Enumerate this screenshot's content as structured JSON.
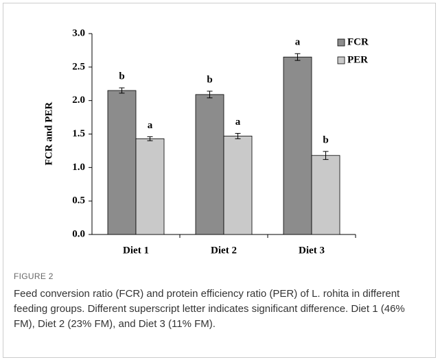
{
  "chart_data": {
    "type": "bar",
    "ylabel": "FCR and PER",
    "categories": [
      "Diet 1",
      "Diet 2",
      "Diet 3"
    ],
    "series": [
      {
        "name": "FCR",
        "color": "#8c8c8c",
        "values": [
          2.15,
          2.09,
          2.65
        ],
        "errors": [
          0.04,
          0.05,
          0.05
        ],
        "letters": [
          "b",
          "b",
          "a"
        ]
      },
      {
        "name": "PER",
        "color": "#c9c9c9",
        "values": [
          1.43,
          1.47,
          1.18
        ],
        "errors": [
          0.03,
          0.04,
          0.06
        ],
        "letters": [
          "a",
          "a",
          "b"
        ]
      }
    ],
    "ylim": [
      0,
      3
    ],
    "yticks": [
      {
        "value": 0,
        "label": "0.0"
      },
      {
        "value": 0.5,
        "label": "0.5"
      },
      {
        "value": 1,
        "label": "1.0"
      },
      {
        "value": 1.5,
        "label": "1.5"
      },
      {
        "value": 2,
        "label": "2.0"
      },
      {
        "value": 2.5,
        "label": "2.5"
      },
      {
        "value": 3,
        "label": "3.0"
      }
    ],
    "grid": false,
    "legend": "upper right"
  },
  "figure": {
    "label": "FIGURE 2",
    "caption": "Feed conversion ratio (FCR) and protein efficiency ratio (PER) of L. rohita in different feeding groups. Different superscript letter indicates significant difference. Diet 1 (46% FM), Diet 2 (23% FM), and Diet 3 (11% FM)."
  }
}
